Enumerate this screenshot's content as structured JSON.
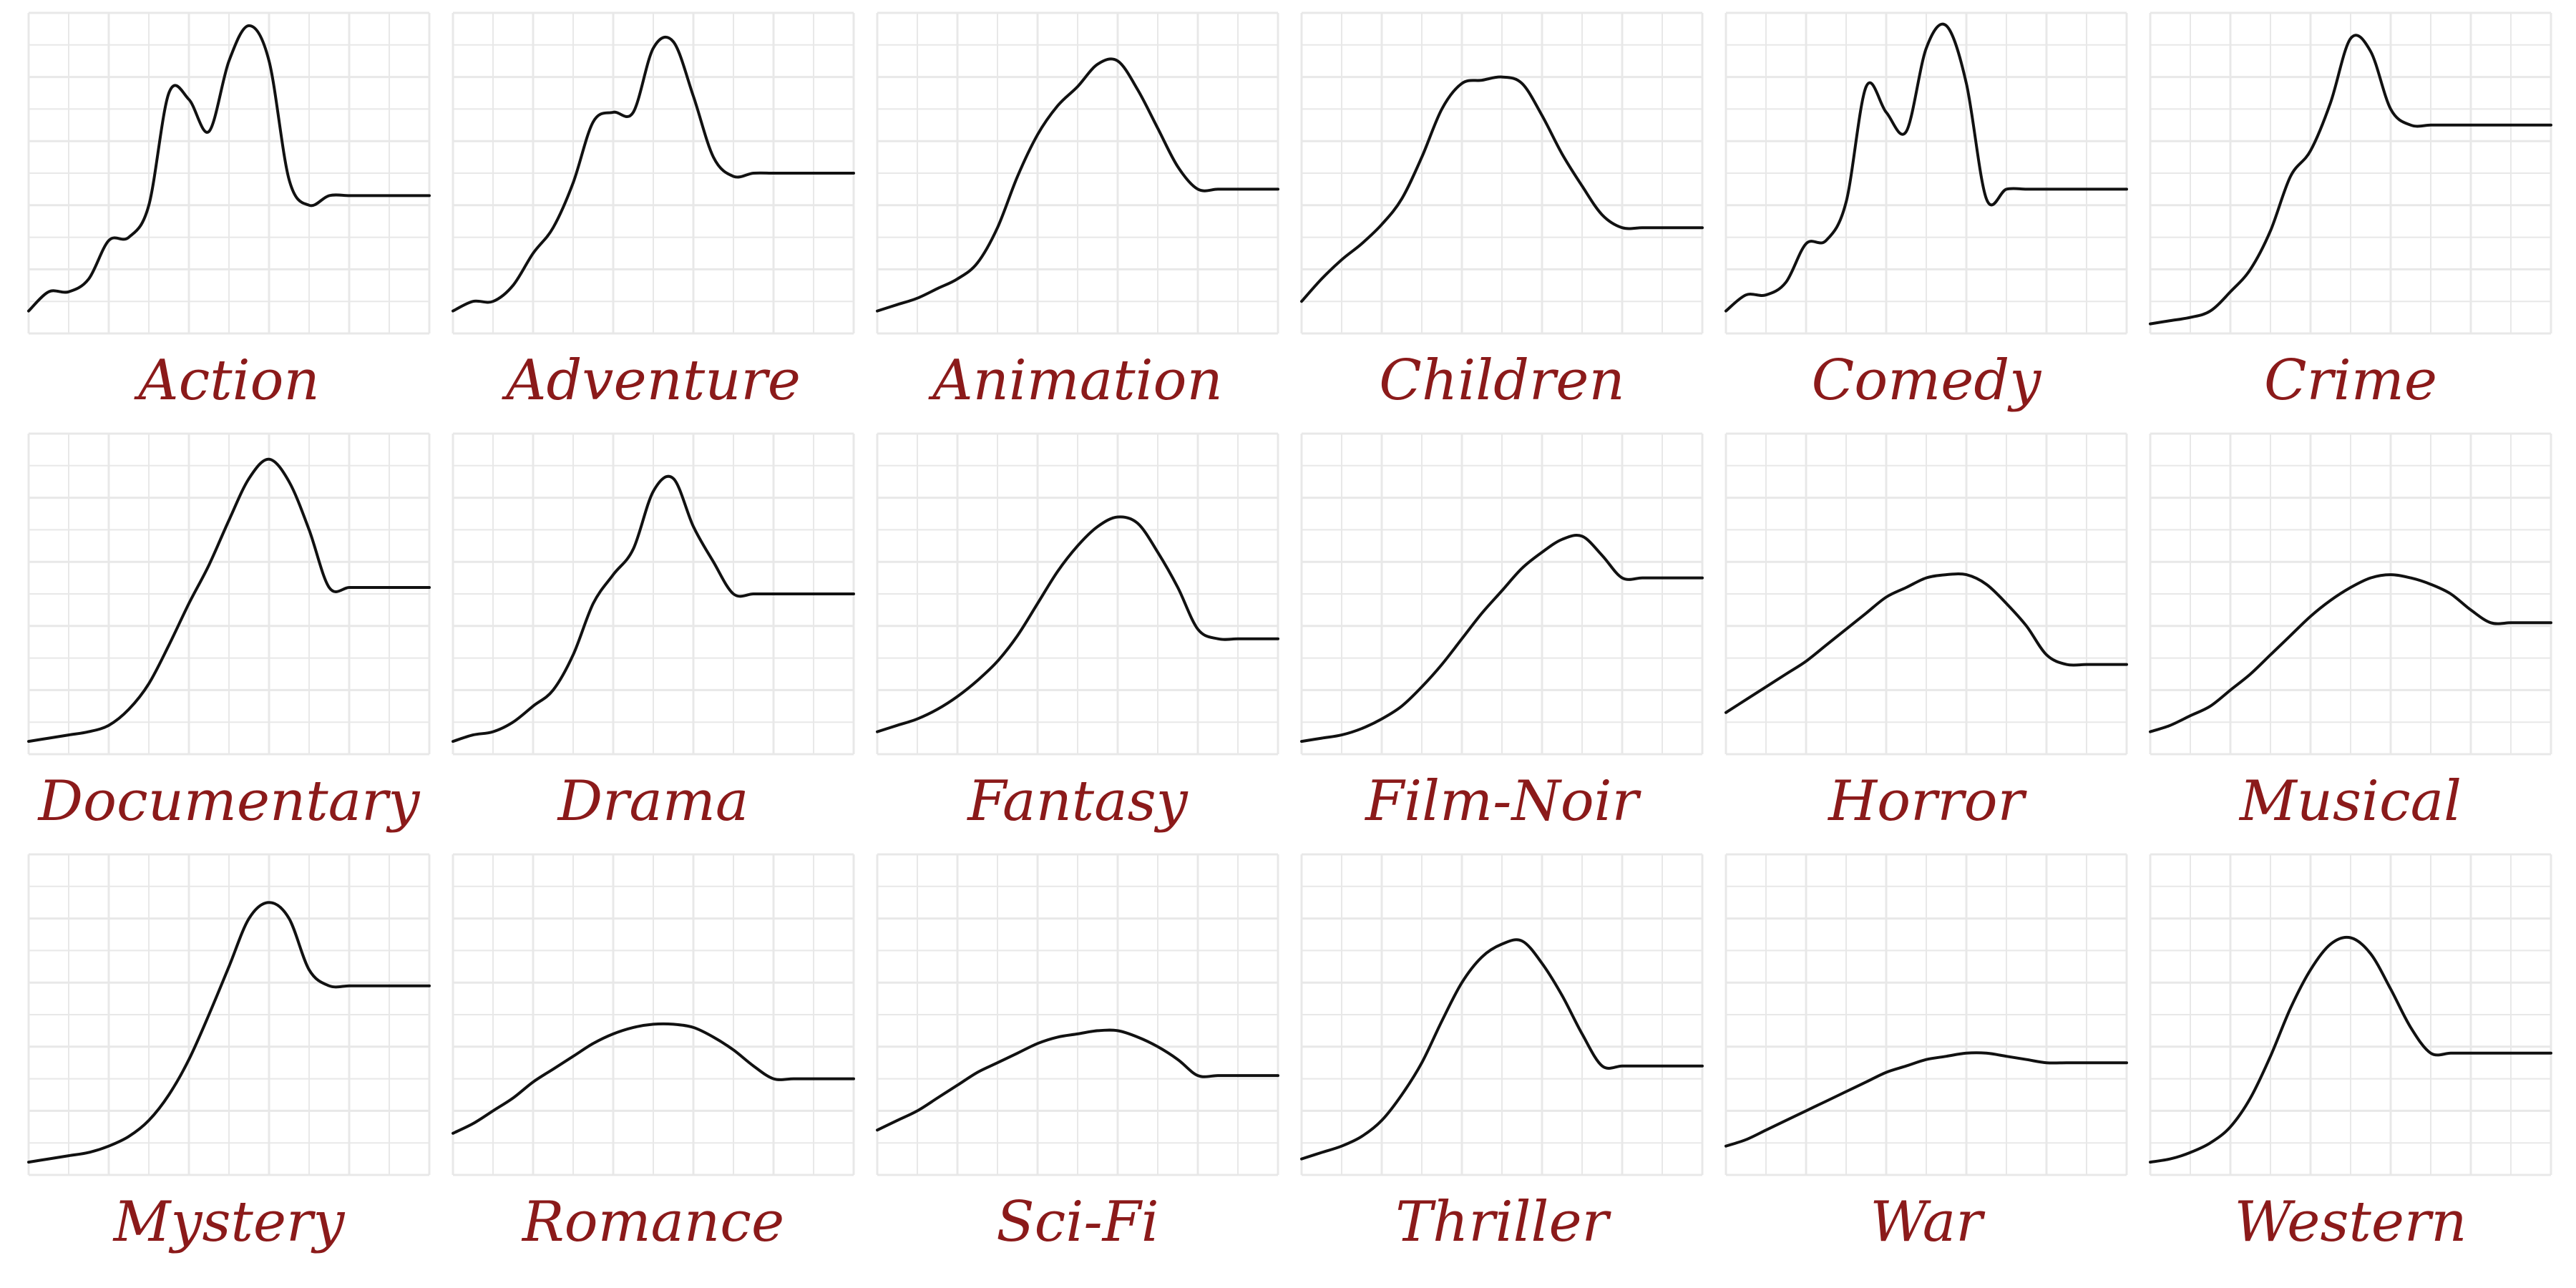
{
  "chart_data": {
    "type": "line",
    "layout": "small-multiples",
    "grid": true,
    "colors": {
      "line": "#111111",
      "label": "#8b1a1a",
      "grid": "#e8e8e8",
      "background": "#ffffff"
    },
    "x": [
      0,
      0.05,
      0.1,
      0.15,
      0.2,
      0.25,
      0.3,
      0.35,
      0.4,
      0.45,
      0.5,
      0.55,
      0.6,
      0.65,
      0.7,
      0.75,
      0.8,
      0.85,
      0.9,
      0.95,
      1.0
    ],
    "panels": [
      {
        "label": "Action",
        "values": [
          0.07,
          0.13,
          0.13,
          0.17,
          0.29,
          0.3,
          0.4,
          0.75,
          0.73,
          0.63,
          0.85,
          0.96,
          0.85,
          0.48,
          0.4,
          0.43,
          0.43,
          0.43,
          0.43,
          0.43,
          0.43
        ]
      },
      {
        "label": "Adventure",
        "values": [
          0.07,
          0.1,
          0.1,
          0.15,
          0.25,
          0.33,
          0.47,
          0.66,
          0.69,
          0.69,
          0.89,
          0.91,
          0.74,
          0.55,
          0.49,
          0.5,
          0.5,
          0.5,
          0.5,
          0.5,
          0.5
        ]
      },
      {
        "label": "Animation",
        "values": [
          0.07,
          0.09,
          0.11,
          0.14,
          0.17,
          0.22,
          0.33,
          0.49,
          0.62,
          0.71,
          0.77,
          0.84,
          0.85,
          0.76,
          0.64,
          0.52,
          0.45,
          0.45,
          0.45,
          0.45,
          0.45
        ]
      },
      {
        "label": "Children",
        "values": [
          0.1,
          0.17,
          0.23,
          0.28,
          0.34,
          0.42,
          0.55,
          0.7,
          0.78,
          0.79,
          0.8,
          0.78,
          0.68,
          0.56,
          0.46,
          0.37,
          0.33,
          0.33,
          0.33,
          0.33,
          0.33
        ]
      },
      {
        "label": "Comedy",
        "values": [
          0.07,
          0.12,
          0.12,
          0.16,
          0.28,
          0.29,
          0.41,
          0.77,
          0.69,
          0.63,
          0.89,
          0.96,
          0.78,
          0.42,
          0.45,
          0.45,
          0.45,
          0.45,
          0.45,
          0.45,
          0.45
        ]
      },
      {
        "label": "Crime",
        "values": [
          0.03,
          0.04,
          0.05,
          0.07,
          0.13,
          0.2,
          0.32,
          0.49,
          0.57,
          0.72,
          0.92,
          0.88,
          0.7,
          0.65,
          0.65,
          0.65,
          0.65,
          0.65,
          0.65,
          0.65,
          0.65
        ]
      },
      {
        "label": "Documentary",
        "values": [
          0.04,
          0.05,
          0.06,
          0.07,
          0.09,
          0.14,
          0.22,
          0.34,
          0.47,
          0.59,
          0.73,
          0.86,
          0.92,
          0.85,
          0.7,
          0.52,
          0.52,
          0.52,
          0.52,
          0.52,
          0.52
        ]
      },
      {
        "label": "Drama",
        "values": [
          0.04,
          0.06,
          0.07,
          0.1,
          0.15,
          0.2,
          0.31,
          0.47,
          0.56,
          0.64,
          0.82,
          0.86,
          0.71,
          0.6,
          0.5,
          0.5,
          0.5,
          0.5,
          0.5,
          0.5,
          0.5
        ]
      },
      {
        "label": "Fantasy",
        "values": [
          0.07,
          0.09,
          0.11,
          0.14,
          0.18,
          0.23,
          0.29,
          0.37,
          0.47,
          0.57,
          0.65,
          0.71,
          0.74,
          0.72,
          0.63,
          0.52,
          0.39,
          0.36,
          0.36,
          0.36,
          0.36
        ]
      },
      {
        "label": "Film-Noir",
        "values": [
          0.04,
          0.05,
          0.06,
          0.08,
          0.11,
          0.15,
          0.21,
          0.28,
          0.36,
          0.44,
          0.51,
          0.58,
          0.63,
          0.67,
          0.68,
          0.62,
          0.55,
          0.55,
          0.55,
          0.55,
          0.55
        ]
      },
      {
        "label": "Horror",
        "values": [
          0.13,
          0.17,
          0.21,
          0.25,
          0.29,
          0.34,
          0.39,
          0.44,
          0.49,
          0.52,
          0.55,
          0.56,
          0.56,
          0.53,
          0.47,
          0.4,
          0.31,
          0.28,
          0.28,
          0.28,
          0.28
        ]
      },
      {
        "label": "Musical",
        "values": [
          0.07,
          0.09,
          0.12,
          0.15,
          0.2,
          0.25,
          0.31,
          0.37,
          0.43,
          0.48,
          0.52,
          0.55,
          0.56,
          0.55,
          0.53,
          0.5,
          0.45,
          0.41,
          0.41,
          0.41,
          0.41
        ]
      },
      {
        "label": "Mystery",
        "values": [
          0.04,
          0.05,
          0.06,
          0.07,
          0.09,
          0.12,
          0.17,
          0.25,
          0.36,
          0.5,
          0.65,
          0.8,
          0.85,
          0.8,
          0.64,
          0.59,
          0.59,
          0.59,
          0.59,
          0.59,
          0.59
        ]
      },
      {
        "label": "Romance",
        "values": [
          0.13,
          0.16,
          0.2,
          0.24,
          0.29,
          0.33,
          0.37,
          0.41,
          0.44,
          0.46,
          0.47,
          0.47,
          0.46,
          0.43,
          0.39,
          0.34,
          0.3,
          0.3,
          0.3,
          0.3,
          0.3
        ]
      },
      {
        "label": "Sci-Fi",
        "values": [
          0.14,
          0.17,
          0.2,
          0.24,
          0.28,
          0.32,
          0.35,
          0.38,
          0.41,
          0.43,
          0.44,
          0.45,
          0.45,
          0.43,
          0.4,
          0.36,
          0.31,
          0.31,
          0.31,
          0.31,
          0.31
        ]
      },
      {
        "label": "Thriller",
        "values": [
          0.05,
          0.07,
          0.09,
          0.12,
          0.17,
          0.25,
          0.35,
          0.48,
          0.6,
          0.68,
          0.72,
          0.73,
          0.66,
          0.56,
          0.44,
          0.34,
          0.34,
          0.34,
          0.34,
          0.34,
          0.34
        ]
      },
      {
        "label": "War",
        "values": [
          0.09,
          0.11,
          0.14,
          0.17,
          0.2,
          0.23,
          0.26,
          0.29,
          0.32,
          0.34,
          0.36,
          0.37,
          0.38,
          0.38,
          0.37,
          0.36,
          0.35,
          0.35,
          0.35,
          0.35,
          0.35
        ]
      },
      {
        "label": "Western",
        "values": [
          0.04,
          0.05,
          0.07,
          0.1,
          0.15,
          0.24,
          0.37,
          0.52,
          0.64,
          0.72,
          0.74,
          0.69,
          0.58,
          0.46,
          0.38,
          0.38,
          0.38,
          0.38,
          0.38,
          0.38,
          0.38
        ]
      }
    ]
  }
}
